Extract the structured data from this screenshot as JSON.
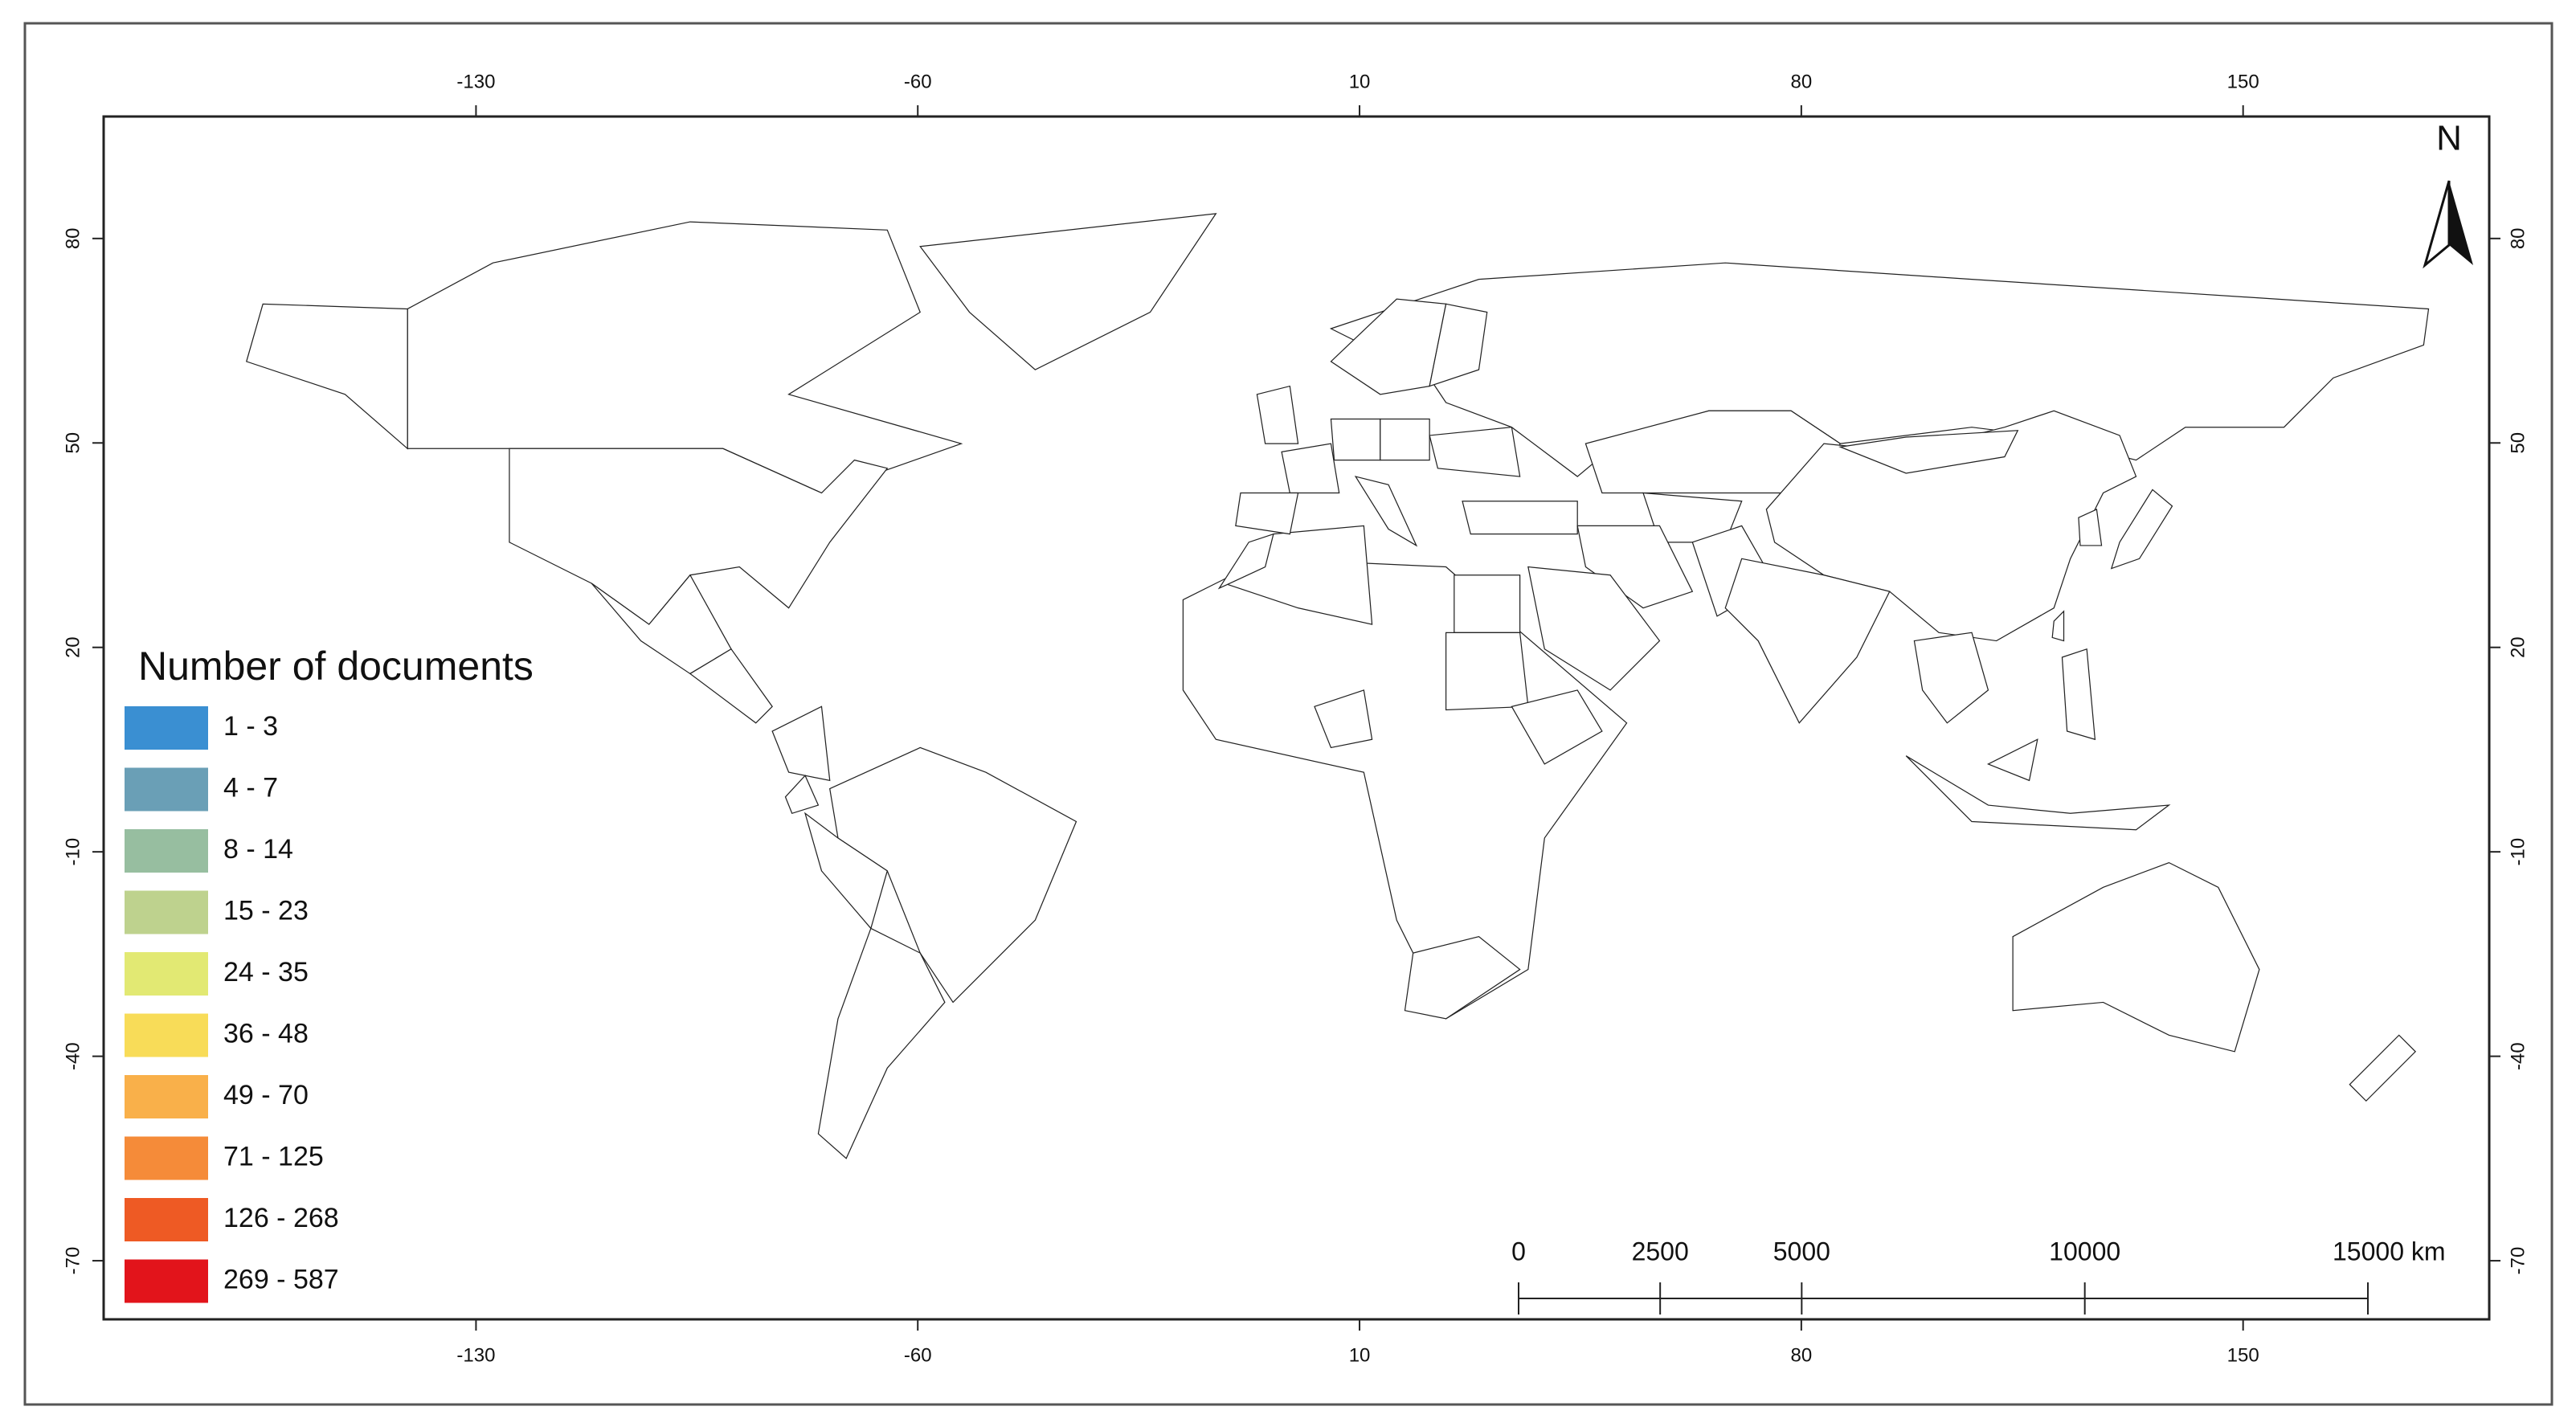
{
  "map": {
    "xlim": [
      -189,
      189
    ],
    "ylim": [
      -78.6,
      97.9
    ],
    "xticks": [
      -130,
      -60,
      10,
      80,
      150
    ],
    "yticks": [
      80,
      50,
      20,
      -10,
      -40,
      -70
    ],
    "north_label": "N",
    "legend": {
      "title": "Number of documents",
      "items": [
        {
          "label": "1 - 3",
          "color": "#3a8fd2"
        },
        {
          "label": "4 - 7",
          "color": "#6a9fb6"
        },
        {
          "label": "8 - 14",
          "color": "#97bea0"
        },
        {
          "label": "15 - 23",
          "color": "#bed28e"
        },
        {
          "label": "24 - 35",
          "color": "#e2e973"
        },
        {
          "label": "36 - 48",
          "color": "#f8dc58"
        },
        {
          "label": "49 - 70",
          "color": "#f9b04a"
        },
        {
          "label": "71 - 125",
          "color": "#f58b39"
        },
        {
          "label": "126 - 268",
          "color": "#ee5a24"
        },
        {
          "label": "269 - 587",
          "color": "#e2141b"
        }
      ]
    },
    "scale_bar": {
      "range": [
        0,
        15000
      ],
      "ticks": [
        0,
        2500,
        5000,
        10000,
        {
          "value": 15000,
          "label": "15000 km"
        }
      ]
    }
  }
}
